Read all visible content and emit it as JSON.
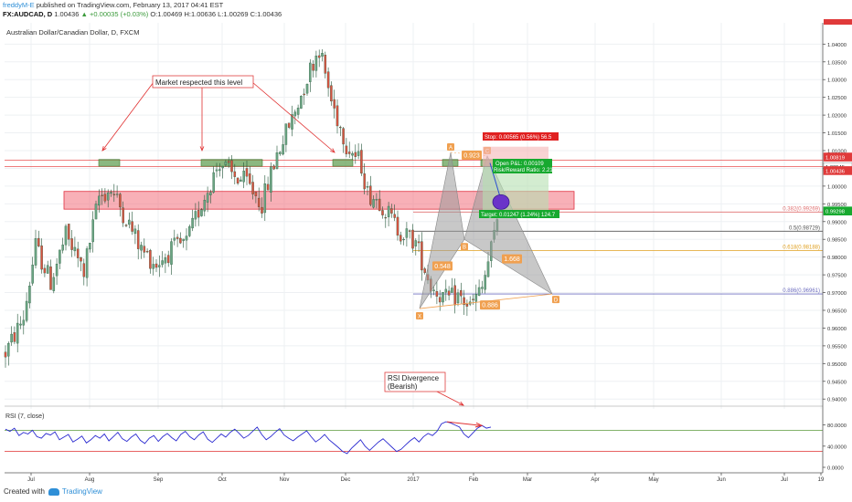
{
  "header": {
    "user": "freddyM-E",
    "published_text": "published on TradingView.com, February 13, 2017 04:41 EST",
    "symbol": "FX:AUDCAD, D",
    "close": "1.00436",
    "change": "+0.00035 (+0.03%)",
    "ohlc": "O:1.00469 H:1.00636 L:1.00269 C:1.00436"
  },
  "footer": {
    "created_with": "Created with",
    "brand": "TradingView"
  },
  "chart_data": {
    "type": "candlestick",
    "title": "Australian Dollar/Canadian Dollar, D, FXCM",
    "ylim": [
      0.938,
      1.046
    ],
    "y_ticks": [
      "1.04000",
      "1.03500",
      "1.03000",
      "1.02500",
      "1.02000",
      "1.01500",
      "1.01000",
      "1.00500",
      "1.00000",
      "0.99500",
      "0.99000",
      "0.98500",
      "0.98000",
      "0.97500",
      "0.97000",
      "0.96500",
      "0.96000",
      "0.95500",
      "0.95000",
      "0.94500",
      "0.94000"
    ],
    "x_ticks": [
      "Jul",
      "Aug",
      "Sep",
      "Oct",
      "Nov",
      "Dec",
      "2017",
      "Feb",
      "Mar",
      "Apr",
      "May",
      "Jun",
      "Jul",
      "19"
    ],
    "price_labels": [
      {
        "text": "1.00819",
        "value": 1.00819,
        "color": "#e03a3a"
      },
      {
        "text": "1.00545",
        "value": 1.00545,
        "color": "#ffffff"
      },
      {
        "text": "1.00436",
        "value": 1.00436,
        "color": "#e03a3a"
      },
      {
        "text": "0.99298",
        "value": 0.99298,
        "color": "#17a92f"
      }
    ],
    "candles_anchor": [
      [
        0,
        0.953
      ],
      [
        6,
        0.963
      ],
      [
        10,
        0.983
      ],
      [
        15,
        0.973
      ],
      [
        20,
        0.986
      ],
      [
        26,
        0.976
      ],
      [
        31,
        0.997
      ],
      [
        35,
        0.999
      ],
      [
        40,
        0.991
      ],
      [
        45,
        0.982
      ],
      [
        50,
        0.978
      ],
      [
        55,
        0.982
      ],
      [
        60,
        0.984
      ],
      [
        64,
        0.993
      ],
      [
        68,
        1.001
      ],
      [
        71,
        1.007
      ],
      [
        75,
        1.003
      ],
      [
        80,
        1.001
      ],
      [
        85,
        0.995
      ],
      [
        90,
        1.009
      ],
      [
        96,
        1.021
      ],
      [
        101,
        1.033
      ],
      [
        104,
        1.039
      ],
      [
        108,
        1.024
      ],
      [
        113,
        1.012
      ],
      [
        118,
        1.006
      ],
      [
        120,
        0.998
      ],
      [
        124,
        0.996
      ],
      [
        130,
        0.988
      ],
      [
        136,
        0.984
      ],
      [
        141,
        0.972
      ],
      [
        146,
        0.968
      ],
      [
        150,
        0.969
      ],
      [
        154,
        0.966
      ],
      [
        158,
        0.971
      ],
      [
        162,
        0.986
      ],
      [
        166,
        1.007
      ],
      [
        169,
        0.996
      ],
      [
        173,
        0.985
      ],
      [
        177,
        0.993
      ],
      [
        180,
        1.005
      ],
      [
        183,
        1.007
      ]
    ],
    "resistance_zone": [
      0.9935,
      0.9985
    ],
    "resistance_lines": [
      1.0073,
      1.0055
    ],
    "fib_levels": [
      {
        "label": "0.382(0.99269)",
        "value": 0.99269,
        "color": "#e07070"
      },
      {
        "label": "0.5(0.98729)",
        "value": 0.98729,
        "color": "#555555"
      },
      {
        "label": "0.618(0.98188)",
        "value": 0.98188,
        "color": "#e0a020"
      },
      {
        "label": "0.886(0.96961)",
        "value": 0.96961,
        "color": "#7070c0"
      }
    ],
    "pattern_points": [
      {
        "label": "X",
        "value": 0.9655
      },
      {
        "label": "A",
        "value": 1.0095
      },
      {
        "label": "B",
        "value": 0.985
      },
      {
        "label": "C",
        "value": 1.0085
      },
      {
        "label": "D",
        "value": 0.9696
      }
    ],
    "pattern_ratios": [
      "0.548",
      "0.923",
      "1.668",
      "0.886"
    ],
    "trade": {
      "stop": "Stop: 0.00565 (0.56%) 56.5",
      "open": "Open P&L: 0.00109",
      "rr": "Risk/Reward Ratio: 2.21",
      "target": "Target: 0.01247 (1.24%) 124.7"
    },
    "annotations": {
      "market": "Market respected this level",
      "rsi_div_1": "RSI Divergence",
      "rsi_div_2": "(Bearish)"
    },
    "rsi": {
      "title": "RSI (7, close)",
      "ylim": [
        0,
        100
      ],
      "ticks": [
        "80.0000",
        "40.0000",
        "0.0000"
      ],
      "upper": 70,
      "lower": 30,
      "values": [
        72,
        68,
        74,
        60,
        66,
        63,
        70,
        58,
        55,
        64,
        61,
        67,
        52,
        57,
        62,
        48,
        53,
        59,
        46,
        52,
        60,
        55,
        63,
        50,
        58,
        66,
        54,
        49,
        57,
        63,
        51,
        45,
        55,
        60,
        49,
        58,
        64,
        56,
        50,
        62,
        68,
        58,
        52,
        61,
        67,
        53,
        47,
        55,
        63,
        57,
        66,
        72,
        64,
        55,
        60,
        68,
        76,
        62,
        52,
        58,
        66,
        73,
        61,
        55,
        50,
        57,
        63,
        69,
        58,
        48,
        54,
        62,
        52,
        45,
        38,
        30,
        26,
        36,
        44,
        52,
        40,
        32,
        40,
        48,
        54,
        46,
        38,
        30,
        34,
        42,
        50,
        56,
        48,
        58,
        64,
        60,
        68,
        82,
        86,
        84,
        80,
        76,
        63,
        56,
        65,
        74,
        79,
        74,
        76
      ]
    }
  }
}
